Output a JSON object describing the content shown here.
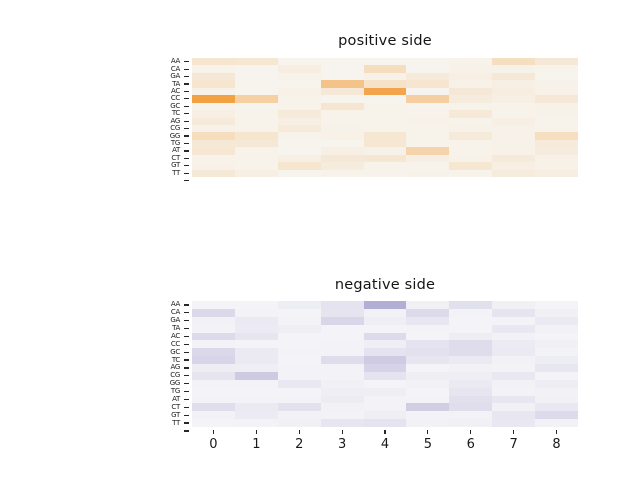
{
  "figure": {
    "background": "#ffffff",
    "text_color": "#1a1a1a",
    "tick_color": "#262626"
  },
  "chart_data": [
    {
      "type": "heatmap",
      "title": "positive side",
      "rows": [
        "AA",
        "CA",
        "GA",
        "TA",
        "AC",
        "CC",
        "GC",
        "TC",
        "AG",
        "CG",
        "GG",
        "TG",
        "AT",
        "CT",
        "GT",
        "TT"
      ],
      "columns": [
        "0",
        "1",
        "2",
        "3",
        "4",
        "5",
        "6",
        "7",
        "8"
      ],
      "colormap": {
        "low": "#f7f6f2",
        "high": "#f2a143"
      },
      "vmin": 0,
      "vmax": 1,
      "x_axis_visible": false,
      "grid": false,
      "legend": "none",
      "values": [
        [
          0.2,
          0.18,
          0.03,
          0.02,
          0.02,
          0.03,
          0.04,
          0.28,
          0.16
        ],
        [
          0.04,
          0.02,
          0.1,
          0.02,
          0.3,
          0.02,
          0.06,
          0.05,
          0.04
        ],
        [
          0.16,
          0.02,
          0.04,
          0.02,
          0.06,
          0.14,
          0.08,
          0.16,
          0.03
        ],
        [
          0.2,
          0.03,
          0.03,
          0.6,
          0.24,
          0.2,
          0.06,
          0.08,
          0.05
        ],
        [
          0.05,
          0.03,
          0.06,
          0.16,
          0.95,
          0.02,
          0.16,
          0.1,
          0.06
        ],
        [
          1.0,
          0.45,
          0.04,
          0.03,
          0.03,
          0.46,
          0.12,
          0.08,
          0.16
        ],
        [
          0.04,
          0.03,
          0.04,
          0.2,
          0.04,
          0.03,
          0.04,
          0.04,
          0.06
        ],
        [
          0.08,
          0.04,
          0.14,
          0.04,
          0.04,
          0.04,
          0.15,
          0.04,
          0.05
        ],
        [
          0.14,
          0.04,
          0.08,
          0.04,
          0.04,
          0.06,
          0.04,
          0.08,
          0.04
        ],
        [
          0.05,
          0.04,
          0.14,
          0.05,
          0.04,
          0.04,
          0.06,
          0.05,
          0.04
        ],
        [
          0.3,
          0.2,
          0.04,
          0.06,
          0.18,
          0.04,
          0.14,
          0.06,
          0.28
        ],
        [
          0.16,
          0.16,
          0.03,
          0.03,
          0.18,
          0.04,
          0.04,
          0.05,
          0.14
        ],
        [
          0.18,
          0.04,
          0.03,
          0.08,
          0.05,
          0.4,
          0.04,
          0.06,
          0.12
        ],
        [
          0.04,
          0.04,
          0.08,
          0.16,
          0.18,
          0.08,
          0.06,
          0.14,
          0.06
        ],
        [
          0.06,
          0.04,
          0.2,
          0.12,
          0.04,
          0.04,
          0.18,
          0.08,
          0.06
        ],
        [
          0.16,
          0.08,
          0.03,
          0.04,
          0.04,
          0.05,
          0.04,
          0.12,
          0.1
        ]
      ]
    },
    {
      "type": "heatmap",
      "title": "negative side",
      "rows": [
        "AA",
        "CA",
        "GA",
        "TA",
        "AC",
        "CC",
        "GC",
        "TC",
        "AG",
        "CG",
        "GG",
        "TG",
        "AT",
        "CT",
        "GT",
        "TT"
      ],
      "columns": [
        "0",
        "1",
        "2",
        "3",
        "4",
        "5",
        "6",
        "7",
        "8"
      ],
      "colormap": {
        "low": "#f7f7f9",
        "high": "#b3aed4"
      },
      "vmin": 0,
      "vmax": 1,
      "x_axis_visible": true,
      "grid": false,
      "legend": "none",
      "values": [
        [
          0.05,
          0.05,
          0.14,
          0.28,
          1.0,
          0.1,
          0.32,
          0.1,
          0.05
        ],
        [
          0.42,
          0.06,
          0.05,
          0.26,
          0.08,
          0.38,
          0.06,
          0.26,
          0.1
        ],
        [
          0.08,
          0.18,
          0.06,
          0.45,
          0.12,
          0.22,
          0.05,
          0.06,
          0.18
        ],
        [
          0.06,
          0.16,
          0.12,
          0.05,
          0.05,
          0.06,
          0.05,
          0.2,
          0.08
        ],
        [
          0.38,
          0.24,
          0.05,
          0.05,
          0.38,
          0.05,
          0.14,
          0.08,
          0.05
        ],
        [
          0.06,
          0.05,
          0.05,
          0.06,
          0.12,
          0.28,
          0.35,
          0.16,
          0.1
        ],
        [
          0.42,
          0.18,
          0.06,
          0.06,
          0.28,
          0.3,
          0.35,
          0.18,
          0.06
        ],
        [
          0.46,
          0.18,
          0.05,
          0.36,
          0.6,
          0.24,
          0.18,
          0.08,
          0.14
        ],
        [
          0.14,
          0.12,
          0.06,
          0.06,
          0.5,
          0.04,
          0.08,
          0.06,
          0.22
        ],
        [
          0.26,
          0.62,
          0.06,
          0.06,
          0.28,
          0.13,
          0.13,
          0.2,
          0.05
        ],
        [
          0.06,
          0.06,
          0.2,
          0.1,
          0.05,
          0.08,
          0.18,
          0.08,
          0.14
        ],
        [
          0.05,
          0.05,
          0.05,
          0.12,
          0.13,
          0.05,
          0.24,
          0.06,
          0.08
        ],
        [
          0.06,
          0.06,
          0.06,
          0.15,
          0.06,
          0.06,
          0.32,
          0.22,
          0.1
        ],
        [
          0.34,
          0.18,
          0.3,
          0.08,
          0.06,
          0.56,
          0.34,
          0.1,
          0.2
        ],
        [
          0.08,
          0.16,
          0.08,
          0.06,
          0.12,
          0.06,
          0.06,
          0.22,
          0.38
        ],
        [
          0.05,
          0.06,
          0.1,
          0.25,
          0.28,
          0.08,
          0.1,
          0.2,
          0.08
        ]
      ]
    }
  ]
}
